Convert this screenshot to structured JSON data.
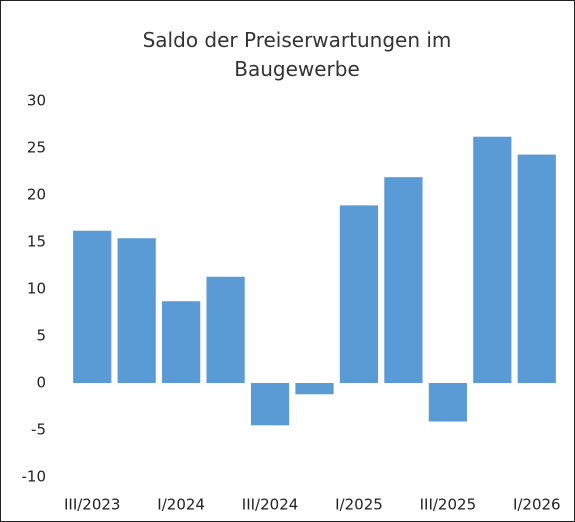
{
  "chart_data": {
    "type": "bar",
    "title": "Saldo der Preiserwartungen im Baugewerbe",
    "categories": [
      "III/2023",
      null,
      "I/2024",
      null,
      "III/2024",
      null,
      "I/2025",
      null,
      "III/2025",
      null,
      "I/2026"
    ],
    "values": [
      16.2,
      15.4,
      8.7,
      11.3,
      -4.5,
      -1.2,
      18.9,
      21.9,
      -4.1,
      26.2,
      24.3
    ],
    "color": "#5b9bd5",
    "ylim": [
      -10,
      30
    ],
    "yticks": [
      -10,
      -5,
      0,
      5,
      10,
      15,
      20,
      25,
      30
    ],
    "grid": false
  }
}
